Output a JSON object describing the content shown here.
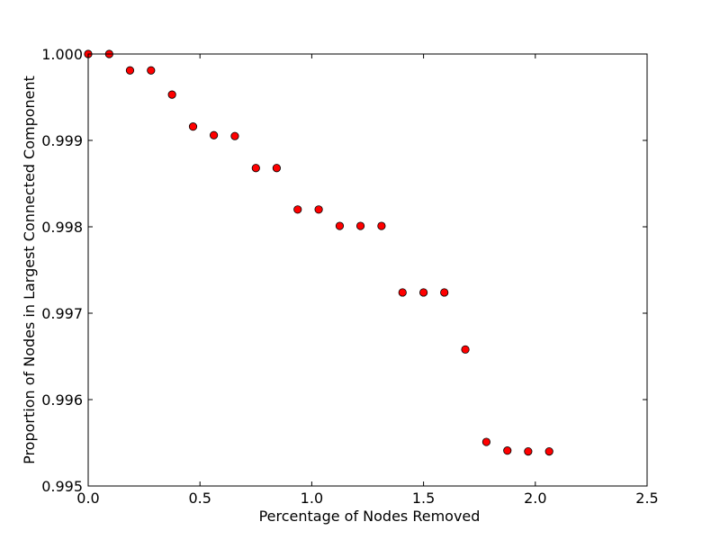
{
  "chart_data": {
    "type": "scatter",
    "title": "",
    "xlabel": "Percentage of Nodes Removed",
    "ylabel": "Proportion of Nodes in Largest Connected Component",
    "xlim": [
      0.0,
      2.5
    ],
    "ylim": [
      0.995,
      1.0
    ],
    "xticks": [
      "0.0",
      "0.5",
      "1.0",
      "1.5",
      "2.0",
      "2.5"
    ],
    "yticks": [
      "0.995",
      "0.996",
      "0.997",
      "0.998",
      "0.999",
      "1.000"
    ],
    "grid": false,
    "marker_color": "#ff0000",
    "marker_edge_color": "#000000",
    "series": [
      {
        "x": [
          0.0,
          0.094,
          0.187,
          0.281,
          0.375,
          0.469,
          0.562,
          0.656,
          0.75,
          0.843,
          0.937,
          1.031,
          1.125,
          1.218,
          1.312,
          1.406,
          1.5,
          1.593,
          1.687,
          1.781,
          1.875,
          1.968,
          2.062
        ],
        "y": [
          1.0,
          1.0,
          0.99981,
          0.99981,
          0.99953,
          0.99916,
          0.99906,
          0.99905,
          0.99868,
          0.99868,
          0.9982,
          0.9982,
          0.99801,
          0.99801,
          0.99801,
          0.99724,
          0.99724,
          0.99724,
          0.99658,
          0.99551,
          0.99541,
          0.9954,
          0.9954
        ]
      }
    ]
  }
}
